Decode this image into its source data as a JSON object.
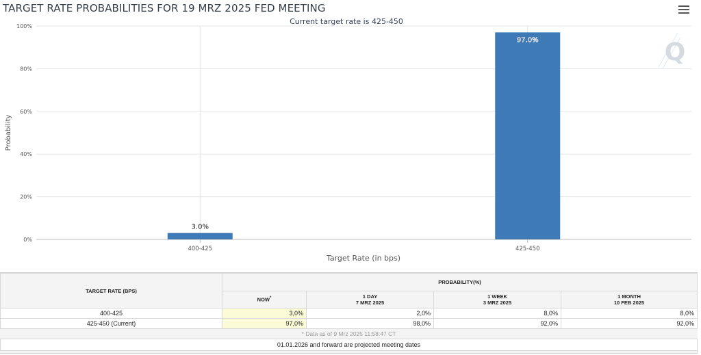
{
  "title": "TARGET RATE PROBABILITIES FOR 19 MRZ 2025 FED MEETING",
  "menu_icon": "hamburger-menu-icon",
  "watermark_icon": "q-logo-icon",
  "chart_data": {
    "type": "bar",
    "subtitle": "Current target rate is 425-450",
    "categories": [
      "400-425",
      "425-450"
    ],
    "values": [
      3.0,
      97.0
    ],
    "data_labels": [
      "3.0%",
      "97.0%"
    ],
    "xlabel": "Target Rate (in bps)",
    "ylabel": "Probability",
    "ylim": [
      0,
      100
    ],
    "yticks": [
      "0%",
      "20%",
      "40%",
      "60%",
      "80%",
      "100%"
    ],
    "grid": true,
    "bar_color": "#3e7bb6"
  },
  "table": {
    "rate_header": "TARGET RATE (BPS)",
    "prob_header": "PROBABILITY(%)",
    "columns": [
      {
        "line1": "NOW",
        "line2": "",
        "star": "*"
      },
      {
        "line1": "1 DAY",
        "line2": "7 MRZ 2025",
        "star": ""
      },
      {
        "line1": "1 WEEK",
        "line2": "3 MRZ 2025",
        "star": ""
      },
      {
        "line1": "1 MONTH",
        "line2": "10 FEB 2025",
        "star": ""
      }
    ],
    "rows": [
      {
        "rate": "400-425",
        "values": [
          "3,0%",
          "2,0%",
          "8,0%",
          "8,0%"
        ]
      },
      {
        "rate": "425-450 (Current)",
        "values": [
          "97,0%",
          "98,0%",
          "92,0%",
          "92,0%"
        ]
      }
    ],
    "note": "* Data as of 9 Mrz 2025 11:58:47 CT",
    "footer": "01.01.2026 and forward are projected meeting dates"
  }
}
